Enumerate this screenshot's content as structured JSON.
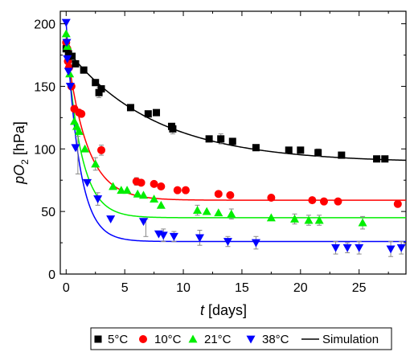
{
  "chart_data": {
    "type": "scatter",
    "xlabel_italic": "t",
    "xlabel_rest": " [days]",
    "ylabel_main": "pO",
    "ylabel_sub": "2",
    "ylabel_rest": " [hPa]",
    "xlim": [
      -0.5,
      29
    ],
    "ylim": [
      0,
      210
    ],
    "xticks": [
      0,
      5,
      10,
      15,
      20,
      25
    ],
    "yticks": [
      0,
      50,
      100,
      150,
      200
    ],
    "grid": false,
    "legend_position": "bottom",
    "series": [
      {
        "name": "5°C",
        "marker": "square",
        "color": "#000000",
        "points": [
          [
            0,
            180
          ],
          [
            0.2,
            176
          ],
          [
            0.5,
            174
          ],
          [
            0.8,
            168
          ],
          [
            1.5,
            163
          ],
          [
            2.5,
            153
          ],
          [
            2.8,
            145
          ],
          [
            3.0,
            148
          ],
          [
            5.5,
            133
          ],
          [
            7.0,
            128
          ],
          [
            7.7,
            129
          ],
          [
            9.0,
            118
          ],
          [
            9.1,
            116
          ],
          [
            12.2,
            108
          ],
          [
            13.2,
            108
          ],
          [
            14.2,
            106
          ],
          [
            16.2,
            101
          ],
          [
            19.0,
            99
          ],
          [
            20.0,
            99
          ],
          [
            21.5,
            97
          ],
          [
            23.5,
            95
          ],
          [
            26.5,
            92
          ],
          [
            27.2,
            92
          ]
        ],
        "errors": [
          [
            2.8,
            145,
            4
          ],
          [
            9.1,
            116,
            4
          ],
          [
            13.2,
            108,
            4
          ],
          [
            21.5,
            97,
            3
          ]
        ],
        "fit": {
          "ymin": 89,
          "amp": 91,
          "tau": 7.5
        }
      },
      {
        "name": "10°C",
        "marker": "circle",
        "color": "#ff0000",
        "points": [
          [
            0,
            185
          ],
          [
            0.1,
            180
          ],
          [
            0.15,
            170
          ],
          [
            0.25,
            165
          ],
          [
            0.45,
            150
          ],
          [
            0.7,
            132
          ],
          [
            1.1,
            129
          ],
          [
            1.3,
            128
          ],
          [
            3.0,
            99
          ],
          [
            6.0,
            74
          ],
          [
            6.4,
            73
          ],
          [
            7.5,
            72
          ],
          [
            8.1,
            70
          ],
          [
            9.5,
            67
          ],
          [
            10.2,
            67
          ],
          [
            13.0,
            64
          ],
          [
            14.0,
            63
          ],
          [
            17.5,
            61
          ],
          [
            21.0,
            59
          ],
          [
            22.0,
            58
          ],
          [
            23.2,
            58
          ],
          [
            28.3,
            56
          ]
        ],
        "errors": [
          [
            3.0,
            99,
            4
          ],
          [
            6.0,
            74,
            3
          ]
        ],
        "fit": {
          "ymin": 59,
          "amp": 126,
          "tau": 1.7
        }
      },
      {
        "name": "21°C",
        "marker": "triangle-up",
        "color": "#00ee00",
        "points": [
          [
            0,
            192
          ],
          [
            0.1,
            182
          ],
          [
            0.3,
            160
          ],
          [
            0.7,
            122
          ],
          [
            0.9,
            118
          ],
          [
            1.1,
            114
          ],
          [
            1.6,
            100
          ],
          [
            2.5,
            88
          ],
          [
            4.0,
            70
          ],
          [
            4.7,
            67
          ],
          [
            5.2,
            67
          ],
          [
            6.1,
            64
          ],
          [
            6.6,
            63
          ],
          [
            7.5,
            60
          ],
          [
            8.1,
            55
          ],
          [
            11.2,
            51
          ],
          [
            12.0,
            50
          ],
          [
            13.0,
            49
          ],
          [
            14.1,
            48
          ],
          [
            17.5,
            45
          ],
          [
            19.5,
            44
          ],
          [
            20.7,
            43
          ],
          [
            21.6,
            43
          ],
          [
            25.3,
            41
          ]
        ],
        "errors": [
          [
            2.5,
            88,
            5
          ],
          [
            11.2,
            51,
            4
          ],
          [
            14.1,
            48,
            4
          ],
          [
            19.5,
            44,
            4
          ],
          [
            20.7,
            43,
            4
          ],
          [
            21.6,
            43,
            4
          ],
          [
            25.3,
            41,
            5
          ]
        ],
        "fit": {
          "ymin": 45,
          "amp": 145,
          "tau": 1.25
        }
      },
      {
        "name": "38°C",
        "marker": "triangle-down",
        "color": "#0000ff",
        "points": [
          [
            0,
            201
          ],
          [
            0.05,
            185
          ],
          [
            0.1,
            172
          ],
          [
            0.2,
            162
          ],
          [
            0.35,
            150
          ],
          [
            0.8,
            101
          ],
          [
            1.8,
            73
          ],
          [
            2.7,
            60
          ],
          [
            3.8,
            44
          ],
          [
            6.6,
            42
          ],
          [
            7.9,
            32
          ],
          [
            8.3,
            31
          ],
          [
            9.2,
            30
          ],
          [
            11.4,
            29
          ],
          [
            13.8,
            26
          ],
          [
            16.2,
            25
          ],
          [
            23.0,
            21
          ],
          [
            24.0,
            21
          ],
          [
            25.0,
            21
          ],
          [
            27.7,
            20
          ],
          [
            28.6,
            21
          ]
        ],
        "errors": [
          [
            1.0,
            95,
            15
          ],
          [
            2.7,
            60,
            5
          ],
          [
            6.8,
            37,
            7
          ],
          [
            8.3,
            31,
            5
          ],
          [
            9.2,
            30,
            4
          ],
          [
            11.4,
            29,
            6
          ],
          [
            13.8,
            26,
            4
          ],
          [
            16.2,
            25,
            5
          ],
          [
            23.0,
            21,
            5
          ],
          [
            24.0,
            21,
            4
          ],
          [
            25.0,
            21,
            5
          ],
          [
            27.7,
            20,
            6
          ],
          [
            28.6,
            21,
            5
          ]
        ],
        "fit": {
          "ymin": 26,
          "amp": 175,
          "tau": 1.1
        }
      }
    ],
    "simulation_label": "Simulation"
  }
}
